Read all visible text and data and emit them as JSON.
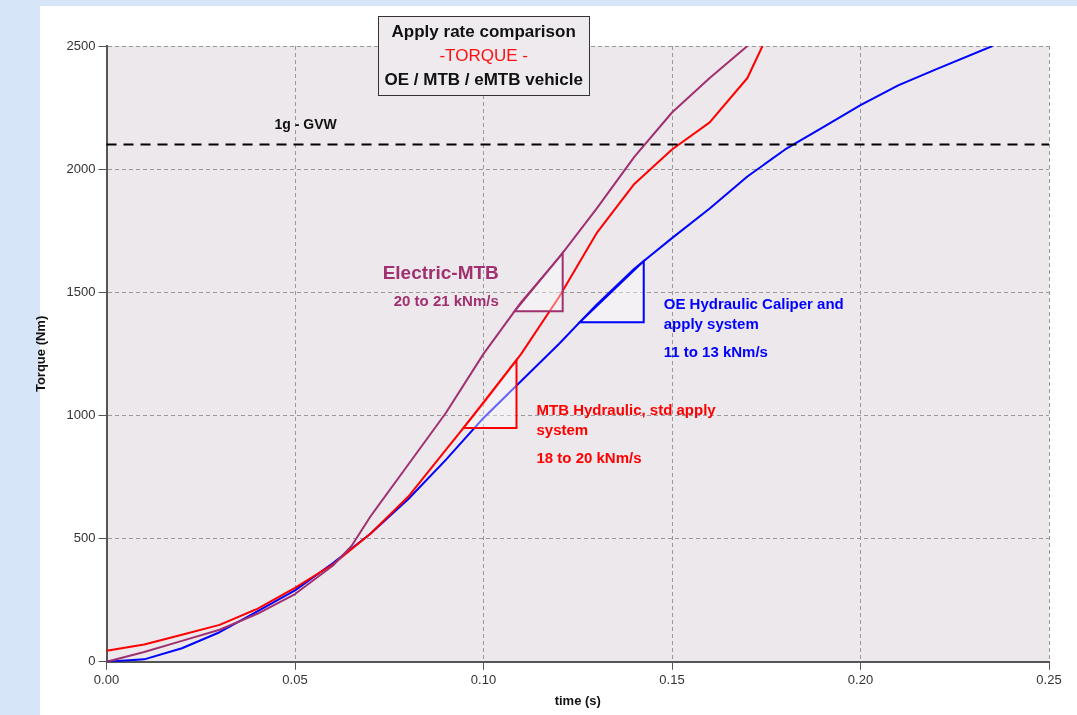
{
  "chart_data": {
    "type": "line",
    "title": "Apply rate comparison",
    "subtitle": "-TORQUE -",
    "xlabel": "time (s)",
    "ylabel": "Torque (Nm)",
    "xlim": [
      0,
      0.25
    ],
    "xticks": [
      {
        "value": 0,
        "label": "0.00"
      },
      0.05,
      {
        "value": 0.1,
        "label": "0.10"
      },
      0.15,
      {
        "value": 0.2,
        "label": "0.20"
      },
      0.25
    ],
    "ylim": [
      0,
      2500
    ],
    "yticks": [
      0,
      500,
      1000,
      1500,
      2000,
      2500
    ],
    "grid": true,
    "legend": false,
    "marker": "none",
    "line_style": "solid",
    "series": [
      {
        "name": "Electric-MTB",
        "color": "#a03070",
        "x": [
          0,
          0.01,
          0.02,
          0.03,
          0.04,
          0.05,
          0.06,
          0.065,
          0.07,
          0.08,
          0.09,
          0.1,
          0.11,
          0.12,
          0.13,
          0.14,
          0.15,
          0.16,
          0.17
        ],
        "values": [
          0,
          40,
          85,
          130,
          195,
          275,
          390,
          470,
          590,
          800,
          1010,
          1250,
          1460,
          1640,
          1840,
          2050,
          2230,
          2370,
          2500
        ]
      },
      {
        "name": "MTB Hydraulic, std apply system",
        "color": "#ff0000",
        "x": [
          0,
          0.01,
          0.02,
          0.03,
          0.04,
          0.05,
          0.06,
          0.07,
          0.08,
          0.09,
          0.1,
          0.11,
          0.12,
          0.13,
          0.14,
          0.15,
          0.16,
          0.17,
          0.174
        ],
        "values": [
          45,
          70,
          110,
          150,
          215,
          300,
          395,
          520,
          670,
          860,
          1050,
          1250,
          1480,
          1740,
          1940,
          2080,
          2190,
          2370,
          2500
        ]
      },
      {
        "name": "OE Hydraulic Caliper and apply system",
        "color": "#0000ff",
        "x": [
          0,
          0.01,
          0.02,
          0.03,
          0.04,
          0.05,
          0.06,
          0.07,
          0.08,
          0.09,
          0.1,
          0.11,
          0.12,
          0.13,
          0.14,
          0.15,
          0.16,
          0.17,
          0.18,
          0.19,
          0.2,
          0.21,
          0.22,
          0.235
        ],
        "values": [
          0,
          10,
          55,
          120,
          205,
          290,
          400,
          520,
          660,
          820,
          990,
          1140,
          1290,
          1450,
          1596,
          1720,
          1840,
          1970,
          2080,
          2170,
          2260,
          2340,
          2405,
          2500
        ]
      }
    ],
    "ref_lines": [
      {
        "axis": "y",
        "value": 2100,
        "label": "1g - GVW",
        "color": "#000000",
        "line_style": "dashed"
      }
    ],
    "annotations": [
      "OE / MTB / eMTB vehicle",
      "20 to 21 kNm/s",
      "18 to 20 kNm/s",
      "11 to 13 kNm/s"
    ]
  }
}
